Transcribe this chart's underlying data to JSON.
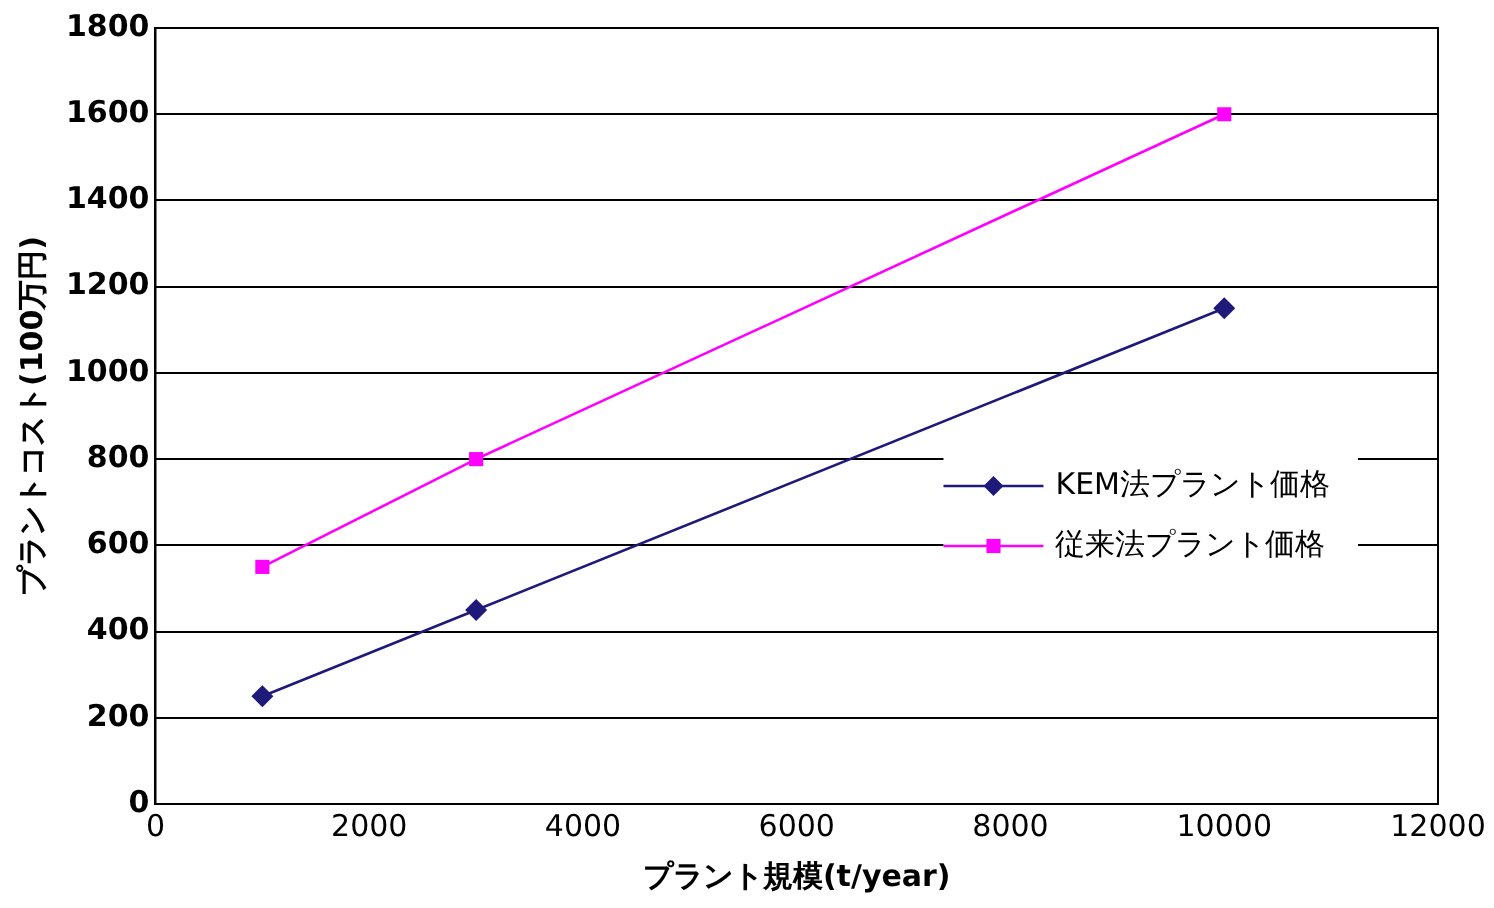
{
  "chart_data": {
    "type": "line",
    "xlabel": "プラント規模(t/year)",
    "ylabel": "プラントコスト(100万円)",
    "xlim": [
      0,
      12000
    ],
    "xticks": [
      0,
      2000,
      4000,
      6000,
      8000,
      10000,
      12000
    ],
    "ylim": [
      0,
      1800
    ],
    "yticks": [
      0,
      200,
      400,
      600,
      800,
      1000,
      1200,
      1400,
      1600,
      1800
    ],
    "grid": "y",
    "legend": "right",
    "series": [
      {
        "name": "KEM法プラント価格",
        "color": "#1f1a7a",
        "marker": "diamond",
        "x": [
          1000,
          3000,
          10000
        ],
        "values": [
          250,
          450,
          1150
        ]
      },
      {
        "name": "従来法プラント価格",
        "color": "#ff00ff",
        "marker": "square",
        "x": [
          1000,
          3000,
          10000
        ],
        "values": [
          550,
          800,
          1600
        ]
      }
    ]
  }
}
